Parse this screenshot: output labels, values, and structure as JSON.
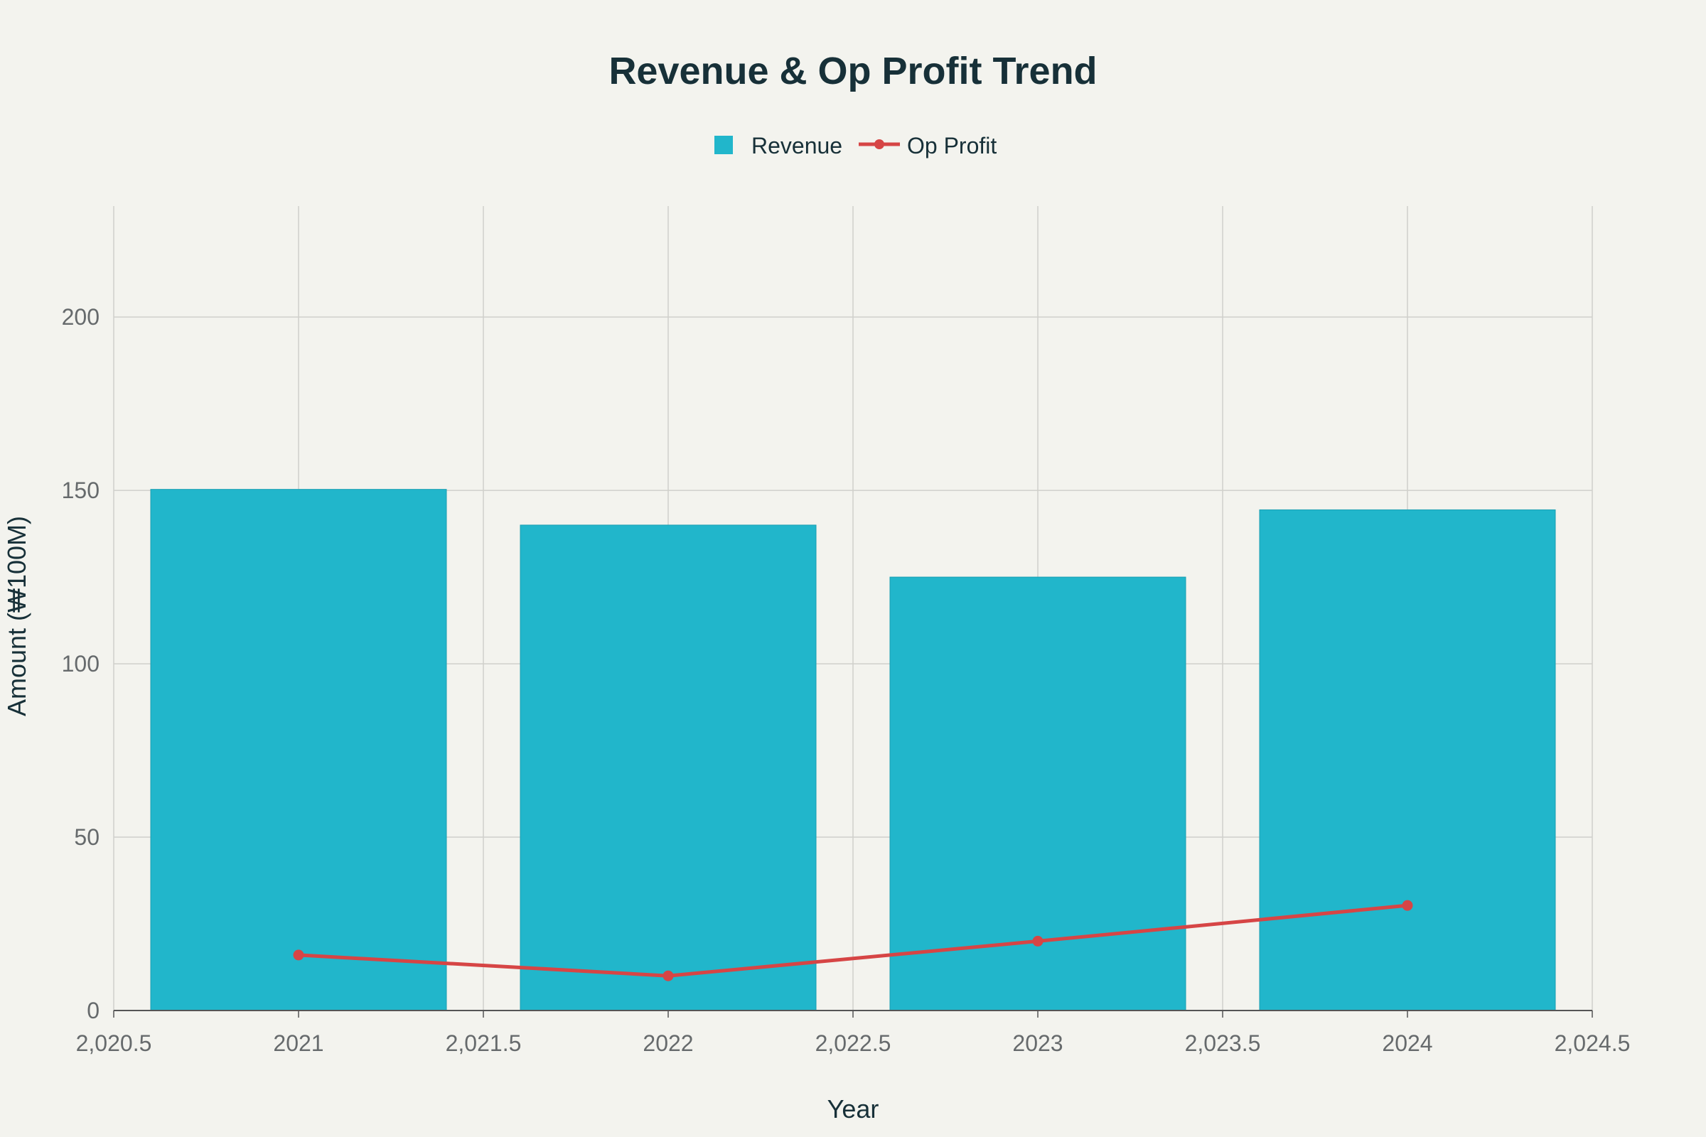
{
  "chart_data": {
    "type": "bar",
    "title": "Revenue & Op Profit Trend",
    "xlabel": "Year",
    "ylabel": "Amount (₩100M)",
    "categories": [
      2021,
      2022,
      2023,
      2024
    ],
    "series": [
      {
        "name": "Revenue",
        "kind": "bar",
        "color": "#21b6cb",
        "values": [
          150.3,
          140.0,
          125.0,
          144.4
        ]
      },
      {
        "name": "Op Profit",
        "kind": "line",
        "color": "#d64545",
        "values": [
          16.0,
          10.0,
          20.0,
          30.3
        ]
      }
    ],
    "xlim": [
      2020.5,
      2024.5
    ],
    "ylim": [
      0,
      232
    ],
    "x_ticks": [
      2020.5,
      2021,
      2021.5,
      2022,
      2022.5,
      2023,
      2023.5,
      2024,
      2024.5
    ],
    "x_tick_labels": [
      "2,020.5",
      "2021",
      "2,021.5",
      "2022",
      "2,022.5",
      "2023",
      "2,023.5",
      "2024",
      "2,024.5"
    ],
    "y_ticks": [
      0,
      50,
      100,
      150,
      200
    ],
    "y_tick_labels": [
      "0",
      "50",
      "100",
      "150",
      "200"
    ],
    "bar_width": 0.8,
    "grid": true,
    "legend_position": "top-center"
  }
}
